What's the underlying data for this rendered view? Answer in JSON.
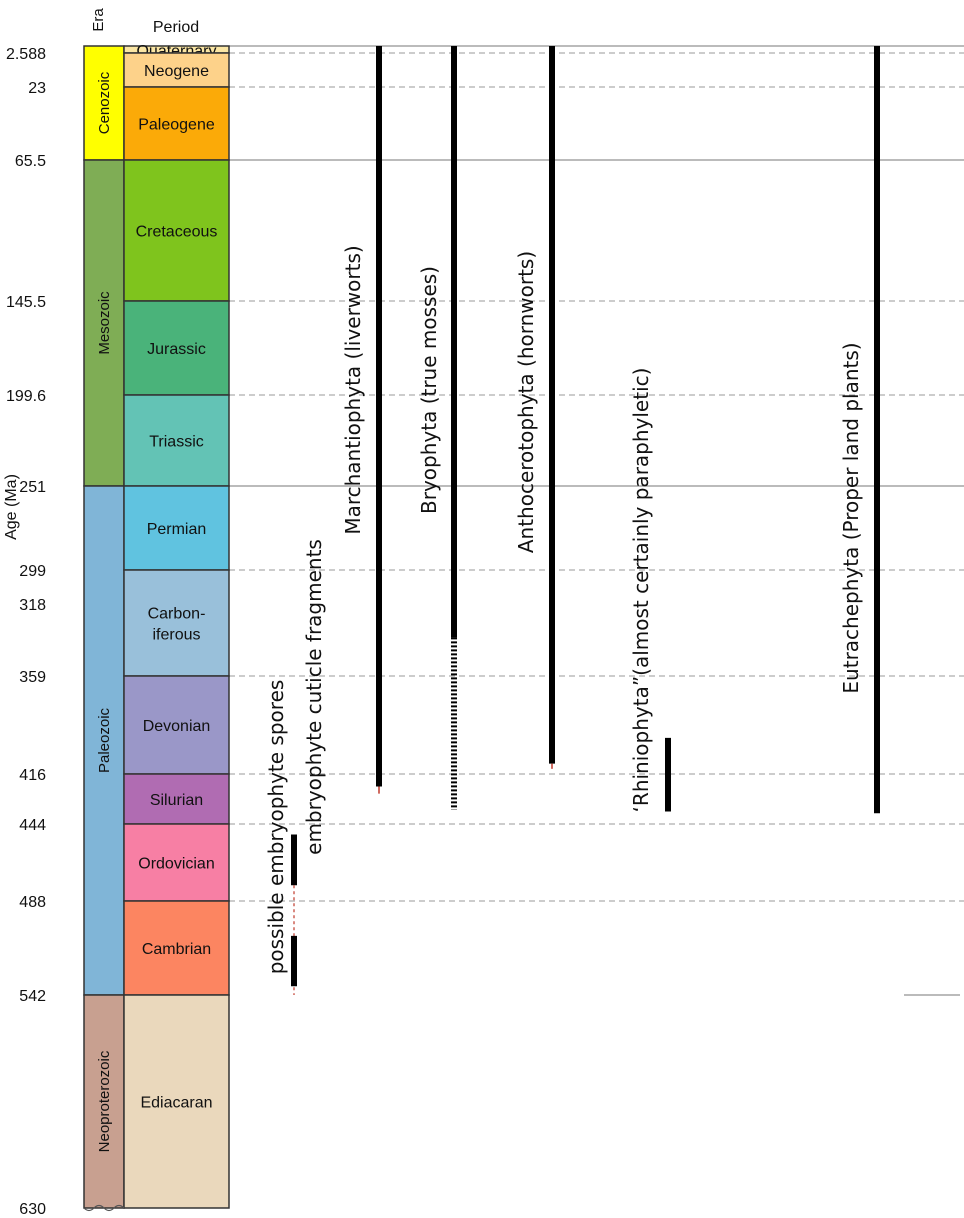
{
  "headers": {
    "era": "Era",
    "period": "Period",
    "age_axis": "Age (Ma)"
  },
  "age_ticks": [
    {
      "label": "2.588",
      "value": 2.588
    },
    {
      "label": "23",
      "value": 23
    },
    {
      "label": "65.5",
      "value": 65.5
    },
    {
      "label": "145.5",
      "value": 145.5
    },
    {
      "label": "199.6",
      "value": 199.6
    },
    {
      "label": "251",
      "value": 251
    },
    {
      "label": "299",
      "value": 299
    },
    {
      "label": "318",
      "value": 318
    },
    {
      "label": "359",
      "value": 359
    },
    {
      "label": "416",
      "value": 416
    },
    {
      "label": "444",
      "value": 444
    },
    {
      "label": "488",
      "value": 488
    },
    {
      "label": "542",
      "value": 542
    },
    {
      "label": "630",
      "value": 630
    }
  ],
  "eras": [
    {
      "name": "Cenozoic",
      "start": 0,
      "end": 65.5,
      "color": "#ffff00"
    },
    {
      "name": "Mesozoic",
      "start": 65.5,
      "end": 251,
      "color": "#7fad55"
    },
    {
      "name": "Paleozoic",
      "start": 251,
      "end": 542,
      "color": "#80b5d7"
    },
    {
      "name": "Neoproterozoic",
      "start": 542,
      "end": 630,
      "color": "#c8a090"
    }
  ],
  "periods": [
    {
      "name": "Quaternary",
      "lines": [
        "Quaternary"
      ],
      "start": 0,
      "end": 2.588,
      "color": "#fbe6a4"
    },
    {
      "name": "Neogene",
      "lines": [
        "Neogene"
      ],
      "start": 2.588,
      "end": 23,
      "color": "#fdd28a"
    },
    {
      "name": "Paleogene",
      "lines": [
        "Paleogene"
      ],
      "start": 23,
      "end": 65.5,
      "color": "#fbaa08"
    },
    {
      "name": "Cretaceous",
      "lines": [
        "Cretaceous"
      ],
      "start": 65.5,
      "end": 145.5,
      "color": "#7fc41d"
    },
    {
      "name": "Jurassic",
      "lines": [
        "Jurassic"
      ],
      "start": 145.5,
      "end": 199.6,
      "color": "#4ab37a"
    },
    {
      "name": "Triassic",
      "lines": [
        "Triassic"
      ],
      "start": 199.6,
      "end": 251,
      "color": "#63c3b5"
    },
    {
      "name": "Permian",
      "lines": [
        "Permian"
      ],
      "start": 251,
      "end": 299,
      "color": "#60c3e0"
    },
    {
      "name": "Carboniferous",
      "lines": [
        "Carbon-",
        "iferous"
      ],
      "start": 299,
      "end": 359,
      "color": "#99c0da"
    },
    {
      "name": "Devonian",
      "lines": [
        "Devonian"
      ],
      "start": 359,
      "end": 416,
      "color": "#9a97c8"
    },
    {
      "name": "Silurian",
      "lines": [
        "Silurian"
      ],
      "start": 416,
      "end": 444,
      "color": "#b06cb2"
    },
    {
      "name": "Ordovician",
      "lines": [
        "Ordovician"
      ],
      "start": 444,
      "end": 488,
      "color": "#f77fa4"
    },
    {
      "name": "Cambrian",
      "lines": [
        "Cambrian"
      ],
      "start": 488,
      "end": 542,
      "color": "#fc8561"
    },
    {
      "name": "Ediacaran",
      "lines": [
        "Ediacaran"
      ],
      "start": 542,
      "end": 630,
      "color": "#ead8bc"
    }
  ],
  "boundaries": [
    {
      "age": 0,
      "style": "solid"
    },
    {
      "age": 2.588,
      "style": "dashed"
    },
    {
      "age": 23,
      "style": "dashed"
    },
    {
      "age": 65.5,
      "style": "solid"
    },
    {
      "age": 145.5,
      "style": "dashed"
    },
    {
      "age": 199.6,
      "style": "dashed"
    },
    {
      "age": 251,
      "style": "solid"
    },
    {
      "age": 299,
      "style": "dashed"
    },
    {
      "age": 359,
      "style": "dashed"
    },
    {
      "age": 416,
      "style": "dashed"
    },
    {
      "age": 444,
      "style": "dashed"
    },
    {
      "age": 488,
      "style": "dashed"
    }
  ],
  "taxa": [
    {
      "label": "Marchantiophyta (liverworts)",
      "range_solid": [
        0,
        423
      ],
      "range_dashed": null,
      "uncertain_tail": [
        423,
        427
      ]
    },
    {
      "label": "Bryophyta (true mosses)",
      "range_solid": [
        0,
        337
      ],
      "range_dashed": [
        337,
        436
      ],
      "uncertain_tail": null
    },
    {
      "label": "Anthocerotophyta (hornworts)",
      "range_solid": [
        0,
        410
      ],
      "range_dashed": null,
      "uncertain_tail": [
        410,
        413
      ]
    },
    {
      "label": "‘Rhiniophyta”(almost certainly paraphyletic)",
      "range_solid": [
        395,
        437
      ],
      "range_dashed": null,
      "uncertain_tail": null
    },
    {
      "label": "Eutrachephyta (Proper land plants)",
      "range_solid": [
        0,
        438
      ],
      "range_dashed": null,
      "uncertain_tail": null
    },
    {
      "label": "embryophyte cuticle fragments",
      "range_solid": [
        450,
        479
      ],
      "range_dashed": [
        479,
        542
      ],
      "uncertain_tail": null
    },
    {
      "label": "possible embryophyte spores",
      "range_solid": [
        508,
        537
      ],
      "range_dashed": null,
      "uncertain_tail": null
    }
  ]
}
